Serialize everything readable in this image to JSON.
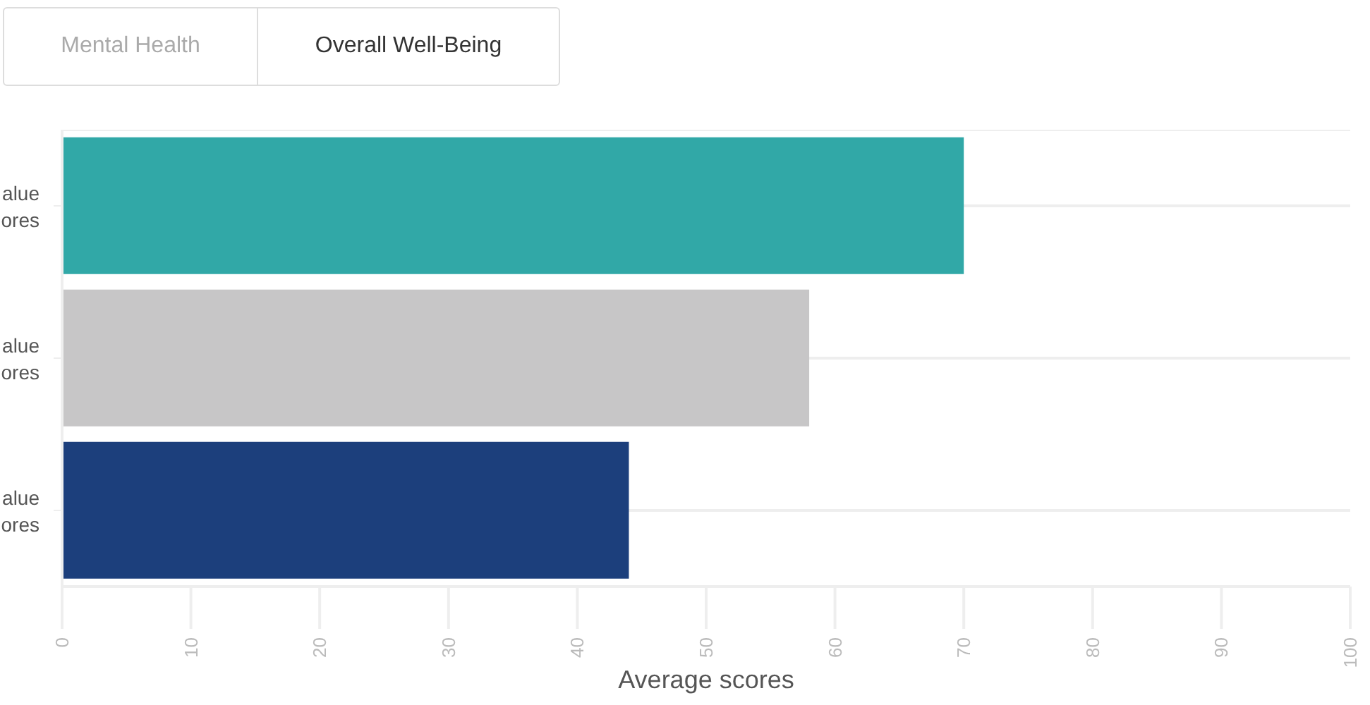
{
  "chart_data": {
    "type": "bar",
    "orientation": "horizontal",
    "categories": [
      "alue ores",
      "alue ores",
      "alue ores"
    ],
    "values": [
      70,
      58,
      44
    ],
    "colors": [
      "#31a8a7",
      "#c7c6c7",
      "#1c3f7c"
    ],
    "xlim": [
      0,
      100
    ],
    "xticks": [
      0,
      10,
      20,
      30,
      40,
      50,
      60,
      70,
      80,
      90,
      100
    ],
    "xlabel": "Average scores",
    "grid": "y",
    "annotations": [
      "Mental Health",
      "Overall Well-Being"
    ]
  }
}
